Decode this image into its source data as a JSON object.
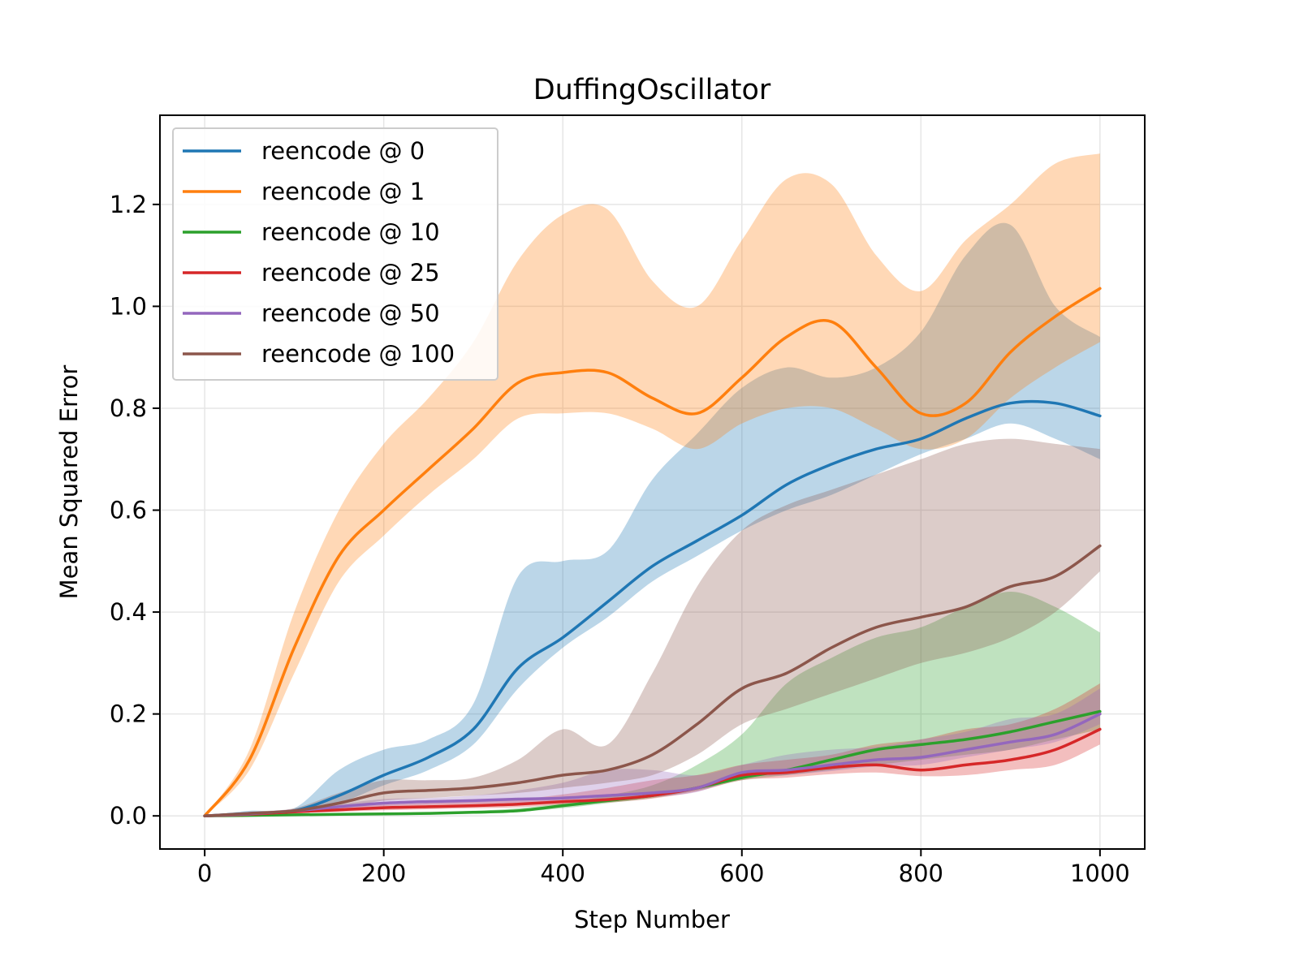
{
  "chart_data": {
    "type": "line",
    "title": "DuffingOscillator",
    "xlabel": "Step Number",
    "ylabel": "Mean Squared Error",
    "xlim": [
      -50,
      1050
    ],
    "ylim": [
      -0.065,
      1.375
    ],
    "xticks": [
      0,
      200,
      400,
      600,
      800,
      1000
    ],
    "xtick_labels": [
      "0",
      "200",
      "400",
      "600",
      "800",
      "1000"
    ],
    "yticks": [
      0.0,
      0.2,
      0.4,
      0.6,
      0.8,
      1.0,
      1.2
    ],
    "ytick_labels": [
      "0.0",
      "0.2",
      "0.4",
      "0.6",
      "0.8",
      "1.0",
      "1.2"
    ],
    "grid": true,
    "legend_position": "upper-left",
    "x": [
      0,
      50,
      100,
      150,
      200,
      250,
      300,
      350,
      400,
      450,
      500,
      550,
      600,
      650,
      700,
      750,
      800,
      850,
      900,
      950,
      1000
    ],
    "series": [
      {
        "name": "reencode @ 0",
        "color": "#1f77b4",
        "values": [
          0,
          0.005,
          0.01,
          0.04,
          0.08,
          0.115,
          0.17,
          0.29,
          0.35,
          0.42,
          0.49,
          0.54,
          0.59,
          0.65,
          0.69,
          0.72,
          0.74,
          0.78,
          0.81,
          0.81,
          0.785
        ],
        "lower": [
          0,
          0.003,
          0.007,
          0.025,
          0.06,
          0.09,
          0.14,
          0.25,
          0.33,
          0.39,
          0.46,
          0.51,
          0.56,
          0.6,
          0.63,
          0.67,
          0.71,
          0.74,
          0.77,
          0.74,
          0.7
        ],
        "upper": [
          0,
          0.01,
          0.015,
          0.09,
          0.13,
          0.15,
          0.22,
          0.47,
          0.5,
          0.52,
          0.66,
          0.75,
          0.84,
          0.88,
          0.86,
          0.88,
          0.95,
          1.1,
          1.16,
          1.0,
          0.94
        ]
      },
      {
        "name": "reencode @ 1",
        "color": "#ff7f0e",
        "values": [
          0,
          0.11,
          0.33,
          0.51,
          0.6,
          0.68,
          0.76,
          0.85,
          0.87,
          0.87,
          0.82,
          0.79,
          0.86,
          0.94,
          0.97,
          0.88,
          0.79,
          0.81,
          0.91,
          0.98,
          1.035
        ],
        "lower": [
          0,
          0.09,
          0.28,
          0.46,
          0.55,
          0.63,
          0.7,
          0.78,
          0.79,
          0.79,
          0.76,
          0.72,
          0.77,
          0.8,
          0.8,
          0.76,
          0.72,
          0.74,
          0.82,
          0.88,
          0.93
        ],
        "upper": [
          0,
          0.13,
          0.4,
          0.6,
          0.73,
          0.82,
          0.93,
          1.09,
          1.18,
          1.19,
          1.05,
          1.0,
          1.13,
          1.25,
          1.24,
          1.1,
          1.03,
          1.13,
          1.2,
          1.28,
          1.3
        ]
      },
      {
        "name": "reencode @ 10",
        "color": "#2ca02c",
        "values": [
          0,
          0.001,
          0.002,
          0.003,
          0.004,
          0.005,
          0.007,
          0.01,
          0.02,
          0.03,
          0.04,
          0.055,
          0.075,
          0.09,
          0.11,
          0.13,
          0.14,
          0.15,
          0.165,
          0.185,
          0.205
        ],
        "lower": [
          0,
          0.0,
          0.001,
          0.002,
          0.003,
          0.004,
          0.005,
          0.008,
          0.015,
          0.025,
          0.035,
          0.05,
          0.07,
          0.08,
          0.09,
          0.1,
          0.11,
          0.12,
          0.13,
          0.15,
          0.17
        ],
        "upper": [
          0,
          0.002,
          0.003,
          0.004,
          0.005,
          0.007,
          0.01,
          0.015,
          0.025,
          0.04,
          0.06,
          0.1,
          0.16,
          0.26,
          0.31,
          0.35,
          0.37,
          0.41,
          0.44,
          0.41,
          0.36
        ]
      },
      {
        "name": "reencode @ 25",
        "color": "#d62728",
        "values": [
          0,
          0.003,
          0.008,
          0.012,
          0.016,
          0.018,
          0.02,
          0.023,
          0.028,
          0.032,
          0.04,
          0.055,
          0.08,
          0.085,
          0.095,
          0.1,
          0.09,
          0.1,
          0.11,
          0.13,
          0.17
        ],
        "lower": [
          0,
          0.002,
          0.005,
          0.008,
          0.011,
          0.013,
          0.015,
          0.017,
          0.022,
          0.026,
          0.034,
          0.048,
          0.07,
          0.075,
          0.082,
          0.085,
          0.078,
          0.08,
          0.09,
          0.1,
          0.14
        ],
        "upper": [
          0,
          0.005,
          0.012,
          0.017,
          0.022,
          0.025,
          0.028,
          0.032,
          0.042,
          0.055,
          0.07,
          0.08,
          0.1,
          0.11,
          0.12,
          0.14,
          0.15,
          0.17,
          0.18,
          0.21,
          0.26
        ]
      },
      {
        "name": "reencode @ 50",
        "color": "#9467bd",
        "values": [
          0,
          0.004,
          0.01,
          0.018,
          0.025,
          0.028,
          0.03,
          0.033,
          0.035,
          0.04,
          0.045,
          0.055,
          0.085,
          0.09,
          0.1,
          0.11,
          0.115,
          0.13,
          0.145,
          0.16,
          0.2
        ],
        "lower": [
          0,
          0.003,
          0.007,
          0.013,
          0.019,
          0.022,
          0.024,
          0.026,
          0.028,
          0.032,
          0.037,
          0.047,
          0.075,
          0.08,
          0.088,
          0.097,
          0.1,
          0.115,
          0.13,
          0.145,
          0.18
        ],
        "upper": [
          0,
          0.006,
          0.013,
          0.023,
          0.033,
          0.035,
          0.04,
          0.05,
          0.065,
          0.09,
          0.09,
          0.08,
          0.1,
          0.12,
          0.13,
          0.135,
          0.15,
          0.165,
          0.19,
          0.2,
          0.25
        ]
      },
      {
        "name": "reencode @ 100",
        "color": "#8c564b",
        "values": [
          0,
          0.005,
          0.01,
          0.025,
          0.045,
          0.05,
          0.055,
          0.065,
          0.08,
          0.09,
          0.12,
          0.18,
          0.25,
          0.28,
          0.33,
          0.37,
          0.39,
          0.41,
          0.45,
          0.47,
          0.53
        ],
        "lower": [
          0,
          0.003,
          0.007,
          0.015,
          0.03,
          0.035,
          0.04,
          0.045,
          0.055,
          0.065,
          0.08,
          0.12,
          0.18,
          0.21,
          0.24,
          0.27,
          0.3,
          0.32,
          0.35,
          0.4,
          0.48
        ],
        "upper": [
          0,
          0.008,
          0.015,
          0.045,
          0.07,
          0.07,
          0.075,
          0.11,
          0.17,
          0.14,
          0.28,
          0.45,
          0.56,
          0.61,
          0.64,
          0.67,
          0.7,
          0.73,
          0.74,
          0.73,
          0.72
        ]
      }
    ]
  }
}
